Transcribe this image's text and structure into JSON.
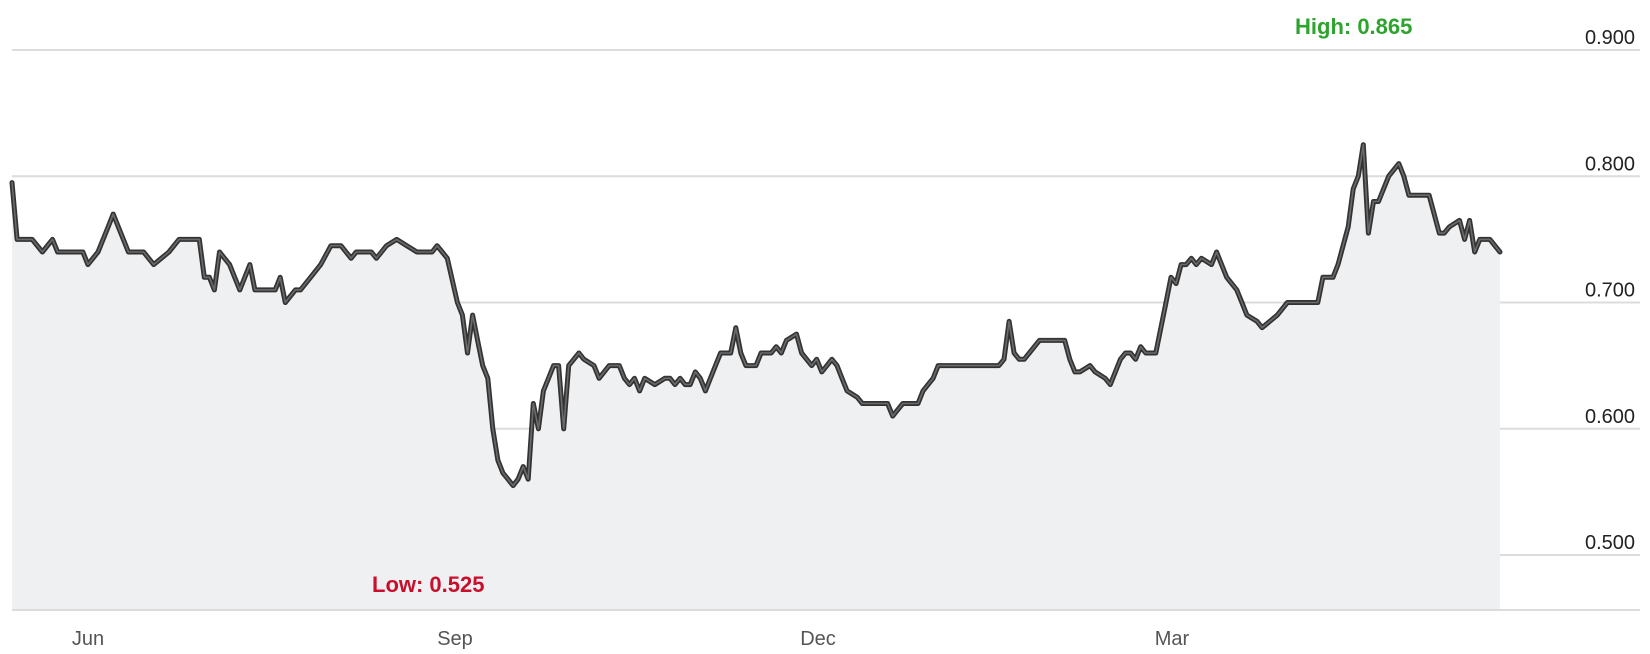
{
  "chart_data": {
    "type": "area",
    "title": "",
    "xlabel": "",
    "ylabel": "",
    "ylim": [
      0.455,
      0.92
    ],
    "grid": true,
    "y_ticks": [
      "0.900",
      "0.800",
      "0.700",
      "0.600",
      "0.500"
    ],
    "y_tick_values": [
      0.9,
      0.8,
      0.7,
      0.6,
      0.5
    ],
    "x_ticks": [
      {
        "label": "Jun",
        "day": 21
      },
      {
        "label": "Sep",
        "day": 111
      },
      {
        "label": "Dec",
        "day": 200
      },
      {
        "label": "Mar",
        "day": 287
      }
    ],
    "x_range_days": [
      0,
      363
    ],
    "series": [
      {
        "name": "",
        "points": [
          [
            0,
            0.795
          ],
          [
            1,
            0.75
          ],
          [
            4,
            0.75
          ],
          [
            6,
            0.74
          ],
          [
            8,
            0.75
          ],
          [
            9,
            0.74
          ],
          [
            14,
            0.74
          ],
          [
            15,
            0.73
          ],
          [
            17,
            0.74
          ],
          [
            19,
            0.76
          ],
          [
            20,
            0.77
          ],
          [
            21,
            0.76
          ],
          [
            23,
            0.74
          ],
          [
            26,
            0.74
          ],
          [
            28,
            0.73
          ],
          [
            31,
            0.74
          ],
          [
            33,
            0.75
          ],
          [
            36,
            0.75
          ],
          [
            37,
            0.75
          ],
          [
            38,
            0.72
          ],
          [
            39,
            0.72
          ],
          [
            40,
            0.71
          ],
          [
            41,
            0.74
          ],
          [
            43,
            0.73
          ],
          [
            44,
            0.72
          ],
          [
            45,
            0.71
          ],
          [
            47,
            0.73
          ],
          [
            48,
            0.71
          ],
          [
            52,
            0.71
          ],
          [
            53,
            0.72
          ],
          [
            54,
            0.7
          ],
          [
            56,
            0.71
          ],
          [
            57,
            0.71
          ],
          [
            59,
            0.72
          ],
          [
            61,
            0.73
          ],
          [
            63,
            0.745
          ],
          [
            65,
            0.745
          ],
          [
            67,
            0.735
          ],
          [
            68,
            0.74
          ],
          [
            71,
            0.74
          ],
          [
            72,
            0.735
          ],
          [
            74,
            0.745
          ],
          [
            76,
            0.75
          ],
          [
            78,
            0.745
          ],
          [
            80,
            0.74
          ],
          [
            83,
            0.74
          ],
          [
            84,
            0.745
          ],
          [
            85,
            0.74
          ],
          [
            86,
            0.735
          ],
          [
            88,
            0.7
          ],
          [
            89,
            0.69
          ],
          [
            90,
            0.66
          ],
          [
            91,
            0.69
          ],
          [
            92,
            0.67
          ],
          [
            93,
            0.65
          ],
          [
            94,
            0.64
          ],
          [
            95,
            0.6
          ],
          [
            96,
            0.575
          ],
          [
            97,
            0.565
          ],
          [
            98,
            0.56
          ],
          [
            99,
            0.555
          ],
          [
            100,
            0.56
          ],
          [
            101,
            0.57
          ],
          [
            102,
            0.56
          ],
          [
            103,
            0.62
          ],
          [
            104,
            0.6
          ],
          [
            105,
            0.63
          ],
          [
            106,
            0.64
          ],
          [
            107,
            0.65
          ],
          [
            108,
            0.65
          ],
          [
            109,
            0.6
          ],
          [
            110,
            0.65
          ],
          [
            111,
            0.655
          ],
          [
            112,
            0.66
          ],
          [
            113,
            0.655
          ],
          [
            115,
            0.65
          ],
          [
            116,
            0.64
          ],
          [
            118,
            0.65
          ],
          [
            120,
            0.65
          ],
          [
            121,
            0.64
          ],
          [
            122,
            0.635
          ],
          [
            123,
            0.64
          ],
          [
            124,
            0.63
          ],
          [
            125,
            0.64
          ],
          [
            127,
            0.635
          ],
          [
            129,
            0.64
          ],
          [
            130,
            0.64
          ],
          [
            131,
            0.635
          ],
          [
            132,
            0.64
          ],
          [
            133,
            0.635
          ],
          [
            134,
            0.635
          ],
          [
            135,
            0.645
          ],
          [
            136,
            0.64
          ],
          [
            137,
            0.63
          ],
          [
            138,
            0.64
          ],
          [
            139,
            0.65
          ],
          [
            140,
            0.66
          ],
          [
            141,
            0.66
          ],
          [
            142,
            0.66
          ],
          [
            143,
            0.68
          ],
          [
            144,
            0.66
          ],
          [
            145,
            0.65
          ],
          [
            146,
            0.65
          ],
          [
            147,
            0.65
          ],
          [
            148,
            0.66
          ],
          [
            150,
            0.66
          ],
          [
            151,
            0.665
          ],
          [
            152,
            0.66
          ],
          [
            153,
            0.67
          ],
          [
            155,
            0.675
          ],
          [
            156,
            0.66
          ],
          [
            158,
            0.65
          ],
          [
            159,
            0.655
          ],
          [
            160,
            0.645
          ],
          [
            161,
            0.65
          ],
          [
            162,
            0.655
          ],
          [
            163,
            0.65
          ],
          [
            164,
            0.64
          ],
          [
            165,
            0.63
          ],
          [
            167,
            0.625
          ],
          [
            168,
            0.62
          ],
          [
            170,
            0.62
          ],
          [
            171,
            0.62
          ],
          [
            173,
            0.62
          ],
          [
            174,
            0.61
          ],
          [
            175,
            0.615
          ],
          [
            176,
            0.62
          ],
          [
            179,
            0.62
          ],
          [
            180,
            0.63
          ],
          [
            182,
            0.64
          ],
          [
            183,
            0.65
          ],
          [
            190,
            0.65
          ],
          [
            195,
            0.65
          ],
          [
            196,
            0.655
          ],
          [
            197,
            0.685
          ],
          [
            198,
            0.66
          ],
          [
            199,
            0.655
          ],
          [
            200,
            0.655
          ],
          [
            201,
            0.66
          ],
          [
            203,
            0.67
          ],
          [
            204,
            0.67
          ],
          [
            208,
            0.67
          ],
          [
            209,
            0.655
          ],
          [
            210,
            0.645
          ],
          [
            211,
            0.645
          ],
          [
            213,
            0.65
          ],
          [
            214,
            0.645
          ],
          [
            216,
            0.64
          ],
          [
            217,
            0.635
          ],
          [
            219,
            0.655
          ],
          [
            220,
            0.66
          ],
          [
            221,
            0.66
          ],
          [
            222,
            0.655
          ],
          [
            223,
            0.665
          ],
          [
            224,
            0.66
          ],
          [
            226,
            0.66
          ],
          [
            228,
            0.7
          ],
          [
            229,
            0.72
          ],
          [
            230,
            0.715
          ],
          [
            231,
            0.73
          ],
          [
            232,
            0.73
          ],
          [
            233,
            0.735
          ],
          [
            234,
            0.73
          ],
          [
            235,
            0.735
          ],
          [
            237,
            0.73
          ],
          [
            238,
            0.74
          ],
          [
            239,
            0.73
          ],
          [
            240,
            0.72
          ],
          [
            242,
            0.71
          ],
          [
            243,
            0.7
          ],
          [
            244,
            0.69
          ],
          [
            246,
            0.685
          ],
          [
            247,
            0.68
          ],
          [
            250,
            0.69
          ],
          [
            252,
            0.7
          ],
          [
            258,
            0.7
          ],
          [
            259,
            0.72
          ],
          [
            261,
            0.72
          ],
          [
            262,
            0.73
          ],
          [
            263,
            0.745
          ],
          [
            264,
            0.76
          ],
          [
            265,
            0.79
          ],
          [
            266,
            0.8
          ],
          [
            267,
            0.825
          ],
          [
            268,
            0.755
          ],
          [
            269,
            0.78
          ],
          [
            270,
            0.78
          ],
          [
            272,
            0.8
          ],
          [
            274,
            0.81
          ],
          [
            275,
            0.8
          ],
          [
            276,
            0.785
          ],
          [
            280,
            0.785
          ],
          [
            282,
            0.755
          ],
          [
            283,
            0.755
          ],
          [
            284,
            0.76
          ],
          [
            286,
            0.765
          ],
          [
            287,
            0.75
          ],
          [
            288,
            0.765
          ],
          [
            289,
            0.74
          ],
          [
            290,
            0.75
          ],
          [
            292,
            0.75
          ],
          [
            294,
            0.74
          ]
        ]
      }
    ],
    "annotations": [
      {
        "text": "High: 0.865",
        "color": "#2ea32e",
        "anchor_day": 258,
        "anchor_value": 0.905,
        "align": "start"
      },
      {
        "text": "Low: 0.525",
        "color": "#c8102e",
        "anchor_day": 70,
        "anchor_value": 0.478,
        "align": "start"
      }
    ],
    "colors": {
      "line": "#333333",
      "area": "#eff0f2",
      "grid": "#dcdcdc"
    }
  }
}
